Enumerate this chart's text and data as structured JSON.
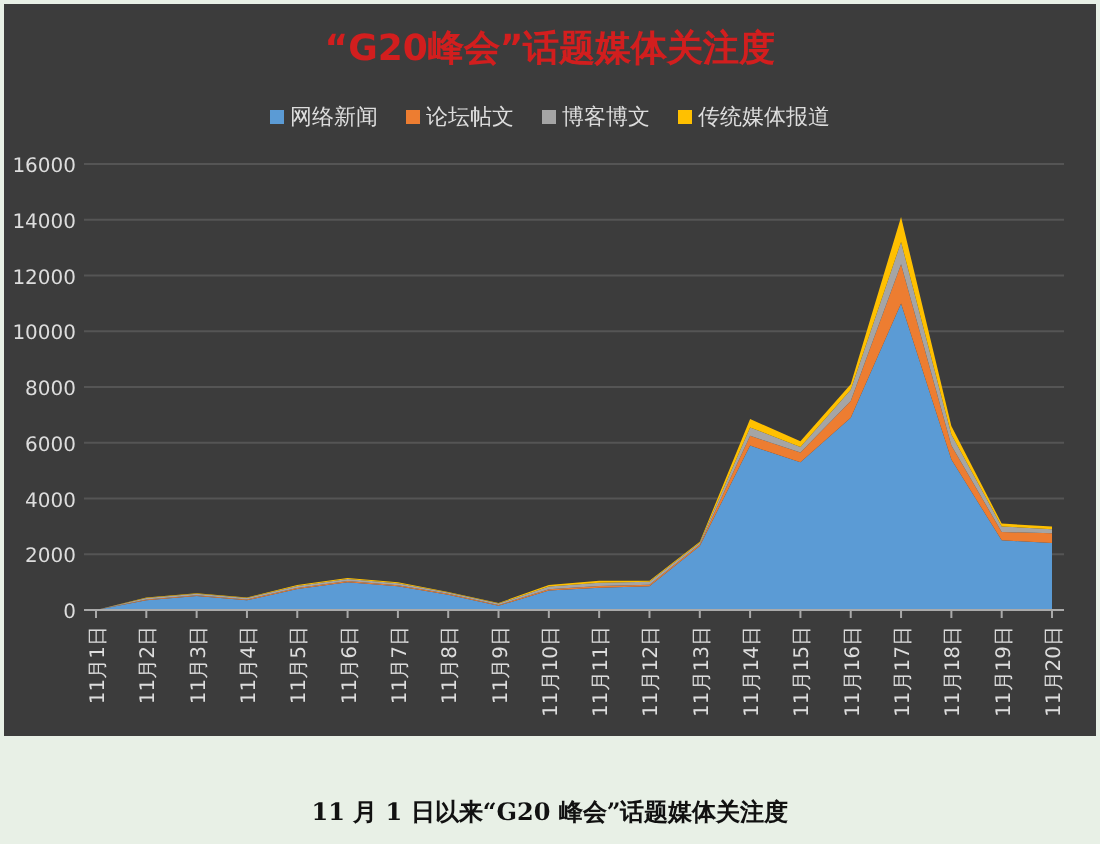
{
  "chart_data": {
    "type": "area",
    "stacked": true,
    "title": "“G20峰会”话题媒体关注度",
    "categories": [
      "11月1日",
      "11月2日",
      "11月3日",
      "11月4日",
      "11月5日",
      "11月6日",
      "11月7日",
      "11月8日",
      "11月9日",
      "11月10日",
      "11月11日",
      "11月12日",
      "11月13日",
      "11月14日",
      "11月15日",
      "11月16日",
      "11月17日",
      "11月18日",
      "11月19日",
      "11月20日"
    ],
    "series": [
      {
        "name": "网络新闻",
        "color": "#5b9bd5",
        "values": [
          0,
          350,
          500,
          350,
          750,
          1000,
          850,
          550,
          150,
          700,
          800,
          850,
          2300,
          5900,
          5300,
          6900,
          11000,
          5400,
          2500,
          2400
        ]
      },
      {
        "name": "论坛帖文",
        "color": "#ed7d31",
        "values": [
          0,
          30,
          30,
          30,
          40,
          40,
          40,
          30,
          30,
          40,
          60,
          60,
          50,
          350,
          350,
          600,
          1400,
          500,
          300,
          350
        ]
      },
      {
        "name": "博客博文",
        "color": "#a5a5a5",
        "values": [
          0,
          50,
          50,
          50,
          70,
          70,
          70,
          50,
          50,
          100,
          120,
          100,
          60,
          300,
          200,
          400,
          800,
          400,
          200,
          150
        ]
      },
      {
        "name": "传统媒体报道",
        "color": "#ffc000",
        "values": [
          0,
          20,
          20,
          20,
          40,
          40,
          40,
          20,
          20,
          60,
          70,
          40,
          40,
          300,
          200,
          200,
          900,
          300,
          100,
          100
        ]
      }
    ],
    "ylim": [
      0,
      16000
    ],
    "yticks": [
      0,
      2000,
      4000,
      6000,
      8000,
      10000,
      12000,
      14000,
      16000
    ],
    "grid": "y",
    "legend": "top",
    "annotations": [
      "11 月 1 日以来“G20 峰会”话题媒体关注度"
    ]
  }
}
